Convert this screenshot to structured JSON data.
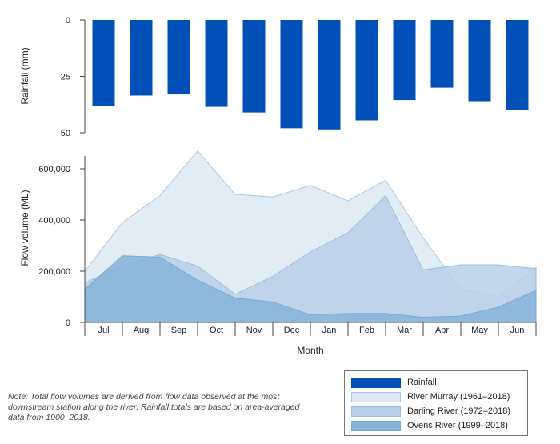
{
  "chart_data": {
    "type": "bar+area",
    "categories": [
      "Jul",
      "Aug",
      "Sep",
      "Oct",
      "Nov",
      "Dec",
      "Jan",
      "Feb",
      "Mar",
      "Apr",
      "May",
      "Jun"
    ],
    "xlabel": "Month",
    "rainfall": {
      "name": "Rainfall",
      "ylabel": "Rainfall (mm)",
      "axis_inverted": true,
      "ylim": [
        0,
        50
      ],
      "yticks": [
        "0",
        "25",
        "50"
      ],
      "values": [
        38,
        33.5,
        33,
        38.5,
        41,
        48,
        48.5,
        44.5,
        35.5,
        30,
        36,
        40
      ],
      "color": "#0050b8"
    },
    "flow": {
      "ylabel": "Flow volume (ML)",
      "ylim": [
        0,
        650000
      ],
      "yticks": [
        "0",
        "200,000",
        "400,000",
        "600,000"
      ],
      "series": [
        {
          "name": "River Murray (1961–2018)",
          "fill": "#dde9f3",
          "stroke": "#a9c7e3",
          "values": [
            200000,
            390000,
            495000,
            670000,
            500000,
            490000,
            535000,
            475000,
            555000,
            330000,
            130000,
            100000,
            215000
          ],
          "x_positions_note": "edge-to-edge"
        },
        {
          "name": "Darling River (1972–2018)",
          "fill": "#b8d0e8",
          "stroke": "#9dbddb",
          "values": [
            155000,
            220000,
            265000,
            220000,
            110000,
            180000,
            275000,
            350000,
            495000,
            205000,
            225000,
            225000,
            210000
          ]
        },
        {
          "name": "Ovens River (1999–2018)",
          "fill": "#86b3d8",
          "stroke": "#7aa9d1",
          "values": [
            130000,
            260000,
            255000,
            165000,
            95000,
            80000,
            30000,
            35000,
            35000,
            20000,
            25000,
            60000,
            125000
          ]
        }
      ]
    }
  },
  "note": "Note: Total flow volumes are derived from flow data observed at the most downstream station along the river. Rainfall totals are based on area-averaged data from 1900–2018.",
  "legend": [
    {
      "label": "Rainfall",
      "color": "#0050b8"
    },
    {
      "label": "River Murray (1961–2018)",
      "color": "#dde9f3"
    },
    {
      "label": "Darling River (1972–2018)",
      "color": "#b8d0e8"
    },
    {
      "label": "Ovens River (1999–2018)",
      "color": "#86b3d8"
    }
  ]
}
